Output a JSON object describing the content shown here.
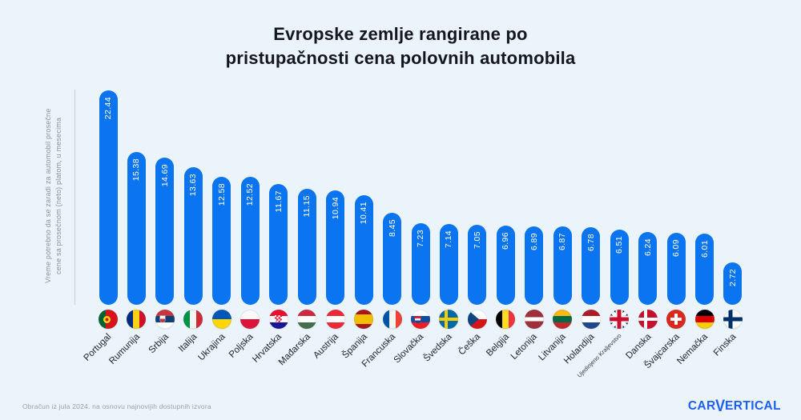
{
  "title": "Evropske zemlje rangirane po\npristupačnosti cena polovnih automobila",
  "y_axis_label": "Vreme potrebno da se zaradi za automobil prosečne\ncene sa prosečnom (neto) platom, u mesecima",
  "footnote": "Obračun iz jula 2024. na osnovu najnovijih dostupnih izvora",
  "logo": {
    "car": "CAR",
    "v": "V",
    "ertical": "ERTICAL"
  },
  "colors": {
    "background": "#ebf3fb",
    "bar": "#0b74f0",
    "title_text": "#14171d",
    "axis_line": "#c9cfd8",
    "muted_text": "#8b939e",
    "country_label": "#22262c",
    "value_text": "#ffffff",
    "logo_blue": "#1c5ff2"
  },
  "chart_data": {
    "type": "bar",
    "title": "Evropske zemlje rangirane po pristupačnosti cena polovnih automobila",
    "xlabel": "",
    "ylabel": "Vreme potrebno da se zaradi za automobil prosečne cene sa prosečnom (neto) platom, u mesecima",
    "ylim": [
      0,
      22.44
    ],
    "grid": false,
    "legend": "none",
    "value_labels": "on-bar, rotated 90, 2 decimals",
    "categories": [
      "Portugal",
      "Rumunija",
      "Srbija",
      "Italija",
      "Ukrajina",
      "Poljska",
      "Hrvatska",
      "Mađarska",
      "Austrija",
      "Španija",
      "Francuska",
      "Slovačka",
      "Švedska",
      "Češka",
      "Belgija",
      "Letonija",
      "Litvanija",
      "Holandija",
      "Ujedinjeno Kraljevstvo",
      "Danska",
      "Švajcarska",
      "Nemačka",
      "Finska"
    ],
    "values": [
      22.44,
      15.38,
      14.69,
      13.63,
      12.58,
      12.52,
      11.67,
      11.15,
      10.94,
      10.41,
      8.45,
      7.23,
      7.14,
      7.05,
      6.96,
      6.89,
      6.87,
      6.78,
      6.51,
      6.24,
      6.09,
      6.01,
      2.72
    ],
    "flag_codes": [
      "pt",
      "ro",
      "rs",
      "it",
      "ua",
      "pl",
      "hr",
      "hu",
      "at",
      "es",
      "fr",
      "sk",
      "se",
      "cz",
      "be",
      "lv",
      "lt",
      "nl",
      "gb",
      "dk",
      "ch",
      "de",
      "fi"
    ]
  }
}
